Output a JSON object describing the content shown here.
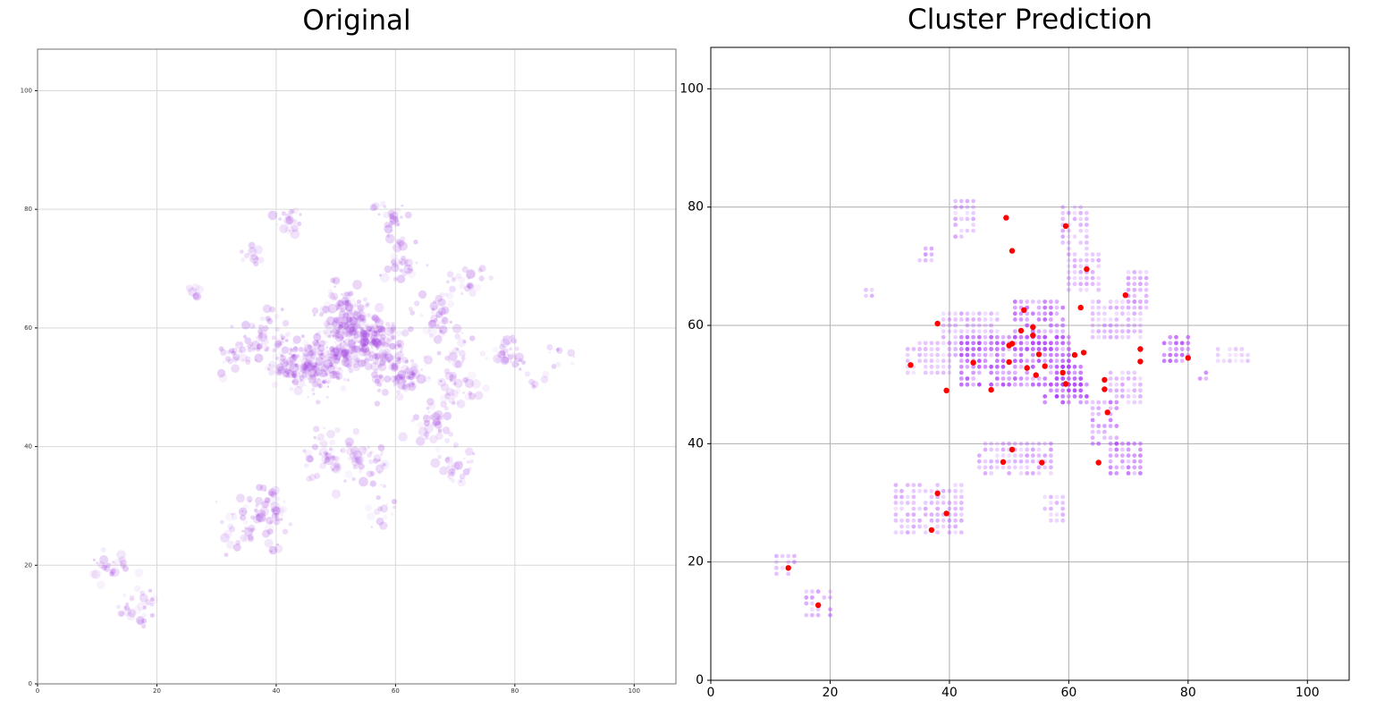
{
  "chart_data": [
    {
      "type": "scatter",
      "title": "Original",
      "xlim": [
        0,
        107
      ],
      "ylim": [
        0,
        107
      ],
      "xticks": [
        0,
        20,
        40,
        60,
        80,
        100
      ],
      "yticks": [
        0,
        20,
        40,
        60,
        80,
        100
      ],
      "grid": true,
      "colors": {
        "points": "#a040e0",
        "grid": "#d9d9d9"
      },
      "clusters": [
        {
          "x": 12,
          "y": 20,
          "n": 25,
          "s": 1.8
        },
        {
          "x": 17,
          "y": 13,
          "n": 30,
          "s": 1.8
        },
        {
          "x": 27,
          "y": 66,
          "n": 6,
          "s": 0.6
        },
        {
          "x": 36,
          "y": 72,
          "n": 14,
          "s": 1.3
        },
        {
          "x": 42,
          "y": 78,
          "n": 22,
          "s": 1.5
        },
        {
          "x": 33,
          "y": 55,
          "n": 22,
          "s": 1.6
        },
        {
          "x": 38,
          "y": 58,
          "n": 60,
          "s": 2.2
        },
        {
          "x": 43,
          "y": 54,
          "n": 90,
          "s": 2.0
        },
        {
          "x": 47,
          "y": 53,
          "n": 90,
          "s": 2.0
        },
        {
          "x": 50,
          "y": 56,
          "n": 110,
          "s": 2.3
        },
        {
          "x": 52,
          "y": 60,
          "n": 90,
          "s": 2.2
        },
        {
          "x": 52,
          "y": 64,
          "n": 45,
          "s": 1.8
        },
        {
          "x": 55,
          "y": 59,
          "n": 70,
          "s": 2.0
        },
        {
          "x": 58,
          "y": 57,
          "n": 100,
          "s": 2.2
        },
        {
          "x": 61,
          "y": 52,
          "n": 80,
          "s": 2.0
        },
        {
          "x": 60,
          "y": 79,
          "n": 25,
          "s": 1.5
        },
        {
          "x": 61,
          "y": 71,
          "n": 35,
          "s": 1.8
        },
        {
          "x": 67,
          "y": 62,
          "n": 40,
          "s": 2.0
        },
        {
          "x": 72,
          "y": 68,
          "n": 25,
          "s": 1.6
        },
        {
          "x": 70,
          "y": 55,
          "n": 25,
          "s": 2.0
        },
        {
          "x": 70,
          "y": 50,
          "n": 30,
          "s": 1.8
        },
        {
          "x": 66,
          "y": 44,
          "n": 35,
          "s": 1.8
        },
        {
          "x": 70,
          "y": 37,
          "n": 30,
          "s": 1.8
        },
        {
          "x": 49,
          "y": 38,
          "n": 50,
          "s": 2.0
        },
        {
          "x": 55,
          "y": 38,
          "n": 40,
          "s": 1.8
        },
        {
          "x": 58,
          "y": 29,
          "n": 15,
          "s": 1.5
        },
        {
          "x": 38,
          "y": 30,
          "n": 45,
          "s": 2.0
        },
        {
          "x": 34,
          "y": 27,
          "n": 30,
          "s": 2.0
        },
        {
          "x": 40,
          "y": 25,
          "n": 10,
          "s": 1.3
        },
        {
          "x": 79,
          "y": 56,
          "n": 30,
          "s": 1.5
        },
        {
          "x": 87,
          "y": 55,
          "n": 10,
          "s": 1.5
        },
        {
          "x": 83,
          "y": 51,
          "n": 6,
          "s": 1.0
        }
      ]
    },
    {
      "type": "scatter",
      "title": "Cluster Prediction",
      "xlim": [
        0,
        107
      ],
      "ylim": [
        0,
        107
      ],
      "xticks": [
        0,
        20,
        40,
        60,
        80,
        100
      ],
      "yticks": [
        0,
        20,
        40,
        60,
        80,
        100
      ],
      "grid": true,
      "colors": {
        "points": "#b040ff",
        "centers": "#ff0000",
        "grid": "#b0b0b0"
      },
      "series": [
        {
          "values": [
            [
              13,
              19
            ],
            [
              18,
              12.7
            ],
            [
              33.5,
              53.3
            ],
            [
              38,
              60.3
            ],
            [
              37,
              25.4
            ],
            [
              38,
              31.6
            ],
            [
              39.5,
              28.2
            ],
            [
              39.5,
              49
            ],
            [
              44,
              53.7
            ],
            [
              47,
              49.1
            ],
            [
              49,
              36.9
            ],
            [
              49.5,
              78.2
            ],
            [
              50.5,
              72.6
            ],
            [
              50.5,
              39
            ],
            [
              50,
              56.6
            ],
            [
              50.5,
              56.9
            ],
            [
              50,
              53.8
            ],
            [
              52,
              59.1
            ],
            [
              52.5,
              62.6
            ],
            [
              53,
              52.8
            ],
            [
              54,
              59.7
            ],
            [
              54.5,
              51.6
            ],
            [
              54,
              58.3
            ],
            [
              55,
              55.1
            ],
            [
              55.5,
              36.8
            ],
            [
              56,
              53.1
            ],
            [
              59,
              52
            ],
            [
              59.5,
              50.1
            ],
            [
              59.5,
              76.8
            ],
            [
              61,
              55
            ],
            [
              62,
              63
            ],
            [
              62.5,
              55.4
            ],
            [
              63,
              69.5
            ],
            [
              65,
              36.8
            ],
            [
              66,
              50.8
            ],
            [
              66,
              49.2
            ],
            [
              66.5,
              45.3
            ],
            [
              69.5,
              65.1
            ],
            [
              72,
              56
            ],
            [
              72,
              53.9
            ],
            [
              80,
              54.5
            ]
          ]
        }
      ],
      "grid_points": [
        {
          "x0": 42,
          "x1": 60,
          "y0": 50,
          "y1": 58,
          "op": 0.6
        },
        {
          "x0": 51,
          "x1": 59,
          "y0": 56,
          "y1": 64,
          "op": 0.55
        },
        {
          "x0": 39,
          "x1": 48,
          "y0": 55,
          "y1": 62,
          "op": 0.3
        },
        {
          "x0": 33,
          "x1": 40,
          "y0": 52,
          "y1": 57,
          "op": 0.25
        },
        {
          "x0": 58,
          "x1": 62,
          "y0": 50,
          "y1": 53,
          "op": 0.7
        },
        {
          "x0": 56,
          "x1": 63,
          "y0": 47,
          "y1": 50,
          "op": 0.7
        },
        {
          "x0": 59,
          "x1": 63,
          "y0": 73,
          "y1": 80,
          "op": 0.3
        },
        {
          "x0": 60,
          "x1": 65,
          "y0": 66,
          "y1": 72,
          "op": 0.3
        },
        {
          "x0": 41,
          "x1": 44,
          "y0": 75,
          "y1": 81,
          "op": 0.3
        },
        {
          "x0": 64,
          "x1": 72,
          "y0": 58,
          "y1": 64,
          "op": 0.3
        },
        {
          "x0": 70,
          "x1": 73,
          "y0": 63,
          "y1": 69,
          "op": 0.35
        },
        {
          "x0": 67,
          "x1": 72,
          "y0": 47,
          "y1": 52,
          "op": 0.3
        },
        {
          "x0": 64,
          "x1": 68,
          "y0": 40,
          "y1": 47,
          "op": 0.45
        },
        {
          "x0": 67,
          "x1": 72,
          "y0": 35,
          "y1": 40,
          "op": 0.45
        },
        {
          "x0": 45,
          "x1": 53,
          "y0": 35,
          "y1": 40,
          "op": 0.3
        },
        {
          "x0": 53,
          "x1": 57,
          "y0": 35,
          "y1": 40,
          "op": 0.35
        },
        {
          "x0": 56,
          "x1": 59,
          "y0": 27,
          "y1": 31,
          "op": 0.3
        },
        {
          "x0": 31,
          "x1": 42,
          "y0": 25,
          "y1": 33,
          "op": 0.3
        },
        {
          "x0": 76,
          "x1": 80,
          "y0": 54,
          "y1": 58,
          "op": 0.55
        },
        {
          "x0": 16,
          "x1": 20,
          "y0": 11,
          "y1": 15,
          "op": 0.35
        },
        {
          "x0": 11,
          "x1": 14,
          "y0": 18,
          "y1": 21,
          "op": 0.3
        },
        {
          "x0": 35,
          "x1": 37,
          "y0": 71,
          "y1": 73,
          "op": 0.35
        },
        {
          "x0": 85,
          "x1": 90,
          "y0": 54,
          "y1": 56,
          "op": 0.2
        },
        {
          "x0": 82,
          "x1": 83,
          "y0": 50,
          "y1": 52,
          "op": 0.4
        },
        {
          "x0": 26,
          "x1": 27,
          "y0": 65,
          "y1": 66,
          "op": 0.35
        }
      ]
    }
  ]
}
